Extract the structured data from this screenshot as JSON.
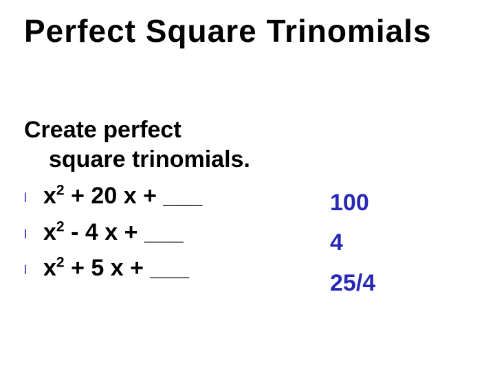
{
  "title": "Perfect Square Trinomials",
  "subheading_line1": "Create perfect",
  "subheading_line2": "square trinomials.",
  "bullet_glyph": "l",
  "bullet_color": "#2828b8",
  "items": [
    {
      "var": "x",
      "exp": "2",
      "op": "+",
      "coef": "20",
      "v2": "x",
      "tail": " + ___"
    },
    {
      "var": "x",
      "exp": "2",
      "op": "-",
      "coef": "4",
      "v2": "x",
      "tail": " + ___"
    },
    {
      "var": "x",
      "exp": "2",
      "op": "+",
      "coef": "5",
      "v2": "x",
      "tail": " + ___"
    }
  ],
  "answers": [
    "100",
    "4",
    "25/4"
  ],
  "answer_color": "#2828b8",
  "title_fontsize": 46,
  "body_fontsize": 34,
  "background_color": "#ffffff",
  "text_color": "#000000"
}
